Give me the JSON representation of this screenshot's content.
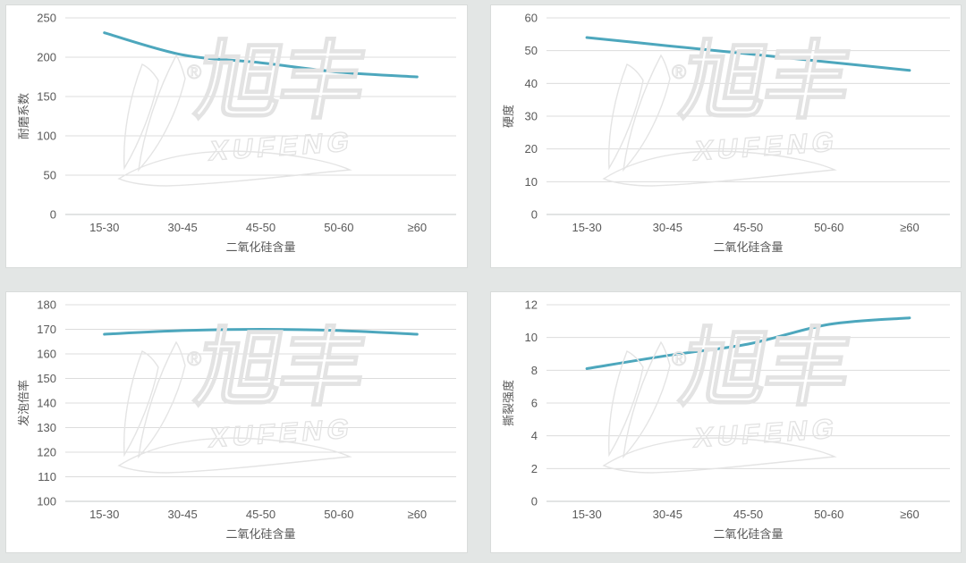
{
  "watermark": {
    "cn": "旭丰",
    "en": "XUFENG",
    "registered": "®"
  },
  "colors": {
    "line": "#4da7bd",
    "grid": "#dcdcdc",
    "axis_line": "#c6c9c8",
    "text": "#595959",
    "page_bg": "#e3e6e5",
    "panel_bg": "#ffffff",
    "panel_border": "#d9dcdb",
    "watermark": "#e4e4e4"
  },
  "chart_data": [
    {
      "type": "line",
      "title": "",
      "ylabel": "耐磨系数",
      "xlabel": "二氧化硅含量",
      "categories": [
        "15-30",
        "30-45",
        "45-50",
        "50-60",
        "≥60"
      ],
      "values": [
        231,
        203,
        193,
        181,
        175
      ],
      "ylim": [
        0,
        250
      ],
      "ytick_step": 50,
      "grid": true,
      "legend": false
    },
    {
      "type": "line",
      "title": "",
      "ylabel": "硬度",
      "xlabel": "二氧化硅含量",
      "categories": [
        "15-30",
        "30-45",
        "45-50",
        "50-60",
        "≥60"
      ],
      "values": [
        54,
        51.5,
        49,
        46.5,
        44
      ],
      "ylim": [
        0,
        60
      ],
      "ytick_step": 10,
      "grid": true,
      "legend": false
    },
    {
      "type": "line",
      "title": "",
      "ylabel": "发泡倍率",
      "xlabel": "二氧化硅含量",
      "categories": [
        "15-30",
        "30-45",
        "45-50",
        "50-60",
        "≥60"
      ],
      "values": [
        168,
        169.5,
        170,
        169.5,
        168
      ],
      "ylim": [
        100,
        180
      ],
      "ytick_step": 10,
      "grid": true,
      "legend": false
    },
    {
      "type": "line",
      "title": "",
      "ylabel": "撕裂强度",
      "xlabel": "二氧化硅含量",
      "categories": [
        "15-30",
        "30-45",
        "45-50",
        "50-60",
        "≥60"
      ],
      "values": [
        8.1,
        8.9,
        9.6,
        10.8,
        11.2
      ],
      "ylim": [
        0,
        12
      ],
      "ytick_step": 2,
      "grid": true,
      "legend": false
    }
  ]
}
